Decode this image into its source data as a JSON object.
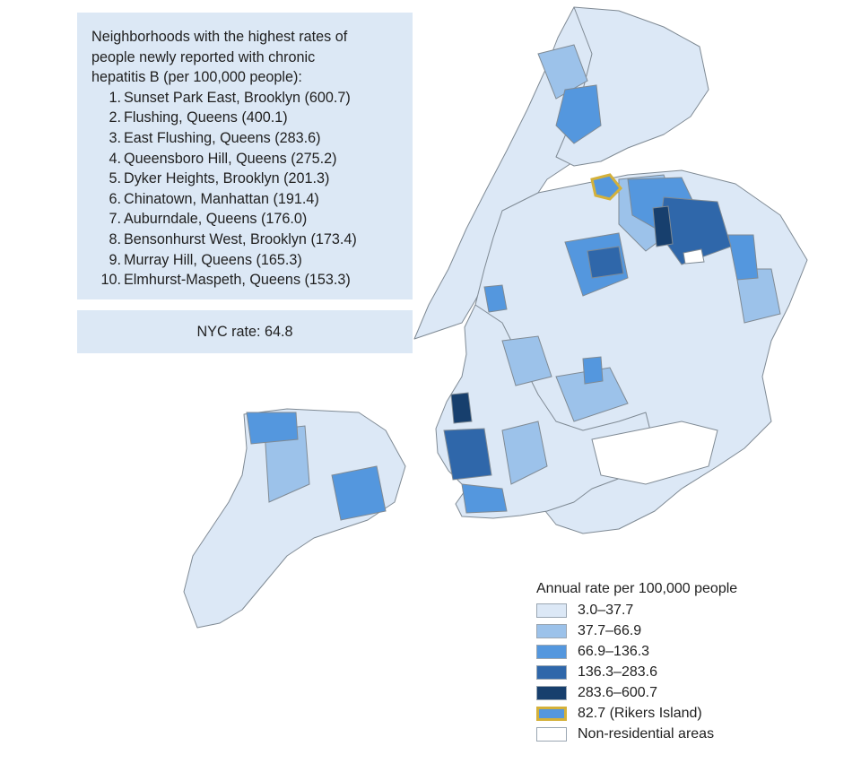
{
  "infobox": {
    "heading": "Neighborhoods with the highest rates of\npeople newly reported with chronic\nhepatitis B (per 100,000 people):",
    "items": [
      {
        "rank": "1.",
        "label": "Sunset Park East, Brooklyn (600.7)"
      },
      {
        "rank": "2.",
        "label": "Flushing, Queens (400.1)"
      },
      {
        "rank": "3.",
        "label": "East Flushing, Queens (283.6)"
      },
      {
        "rank": "4.",
        "label": "Queensboro Hill, Queens (275.2)"
      },
      {
        "rank": "5.",
        "label": "Dyker Heights, Brooklyn (201.3)"
      },
      {
        "rank": "6.",
        "label": "Chinatown, Manhattan (191.4)"
      },
      {
        "rank": "7.",
        "label": "Auburndale, Queens (176.0)"
      },
      {
        "rank": "8.",
        "label": "Bensonhurst West, Brooklyn (173.4)"
      },
      {
        "rank": "9.",
        "label": "Murray Hill, Queens (165.3)"
      },
      {
        "rank": "10.",
        "label": "Elmhurst-Maspeth, Queens (153.3)"
      }
    ]
  },
  "nyc_rate": "NYC rate: 64.8",
  "legend": {
    "title": "Annual rate per 100,000 people",
    "items": [
      {
        "label": "3.0–37.7",
        "color": "#dce8f6"
      },
      {
        "label": "37.7–66.9",
        "color": "#9cc2ea"
      },
      {
        "label": "66.9–136.3",
        "color": "#5497de"
      },
      {
        "label": "136.3–283.6",
        "color": "#2f67aa"
      },
      {
        "label": "283.6–600.7",
        "color": "#173f6d"
      },
      {
        "label": "82.7 (Rikers Island)",
        "color": "#5497de",
        "outline": "#d4b13a"
      },
      {
        "label": "Non-residential areas",
        "color": "#ffffff"
      }
    ]
  }
}
